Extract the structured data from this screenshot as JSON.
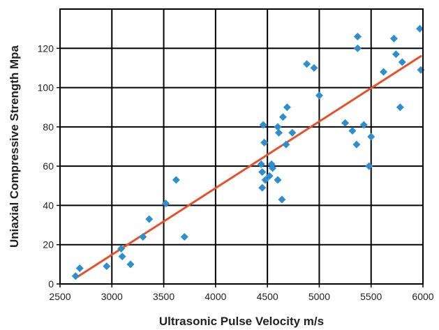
{
  "chart_data": {
    "type": "scatter",
    "title": "",
    "xlabel": "Ultrasonic Pulse Velocity m/s",
    "ylabel": "Uniaxial Compressive Strength Mpa",
    "xlim": [
      2500,
      6000
    ],
    "ylim": [
      0,
      140
    ],
    "x_ticks": [
      "2500",
      "3000",
      "3500",
      "4000",
      "4500",
      "5000",
      "5500",
      "6000"
    ],
    "y_ticks": [
      "0",
      "20",
      "40",
      "60",
      "80",
      "100",
      "120"
    ],
    "grid": true,
    "legend": "none",
    "marker_color": "#2e8fd0",
    "trendline_color": "#e8502a",
    "trendline": {
      "x": [
        2650,
        5980
      ],
      "y": [
        3,
        116
      ]
    },
    "points": [
      {
        "x": 2650,
        "y": 4
      },
      {
        "x": 2690,
        "y": 8
      },
      {
        "x": 2950,
        "y": 9
      },
      {
        "x": 3090,
        "y": 18
      },
      {
        "x": 3100,
        "y": 14
      },
      {
        "x": 3180,
        "y": 10
      },
      {
        "x": 3300,
        "y": 24
      },
      {
        "x": 3360,
        "y": 33
      },
      {
        "x": 3520,
        "y": 41
      },
      {
        "x": 3620,
        "y": 53
      },
      {
        "x": 3700,
        "y": 24
      },
      {
        "x": 4440,
        "y": 61
      },
      {
        "x": 4450,
        "y": 57
      },
      {
        "x": 4450,
        "y": 49
      },
      {
        "x": 4460,
        "y": 81
      },
      {
        "x": 4470,
        "y": 72
      },
      {
        "x": 4480,
        "y": 53
      },
      {
        "x": 4520,
        "y": 55
      },
      {
        "x": 4540,
        "y": 61
      },
      {
        "x": 4550,
        "y": 59
      },
      {
        "x": 4600,
        "y": 53
      },
      {
        "x": 4600,
        "y": 80
      },
      {
        "x": 4610,
        "y": 77
      },
      {
        "x": 4640,
        "y": 43
      },
      {
        "x": 4650,
        "y": 85
      },
      {
        "x": 4680,
        "y": 71
      },
      {
        "x": 4690,
        "y": 90
      },
      {
        "x": 4740,
        "y": 77
      },
      {
        "x": 4880,
        "y": 112
      },
      {
        "x": 4950,
        "y": 110
      },
      {
        "x": 5000,
        "y": 96
      },
      {
        "x": 5250,
        "y": 82
      },
      {
        "x": 5320,
        "y": 78
      },
      {
        "x": 5360,
        "y": 71
      },
      {
        "x": 5370,
        "y": 126
      },
      {
        "x": 5370,
        "y": 120
      },
      {
        "x": 5430,
        "y": 81
      },
      {
        "x": 5480,
        "y": 60
      },
      {
        "x": 5500,
        "y": 75
      },
      {
        "x": 5620,
        "y": 108
      },
      {
        "x": 5720,
        "y": 125
      },
      {
        "x": 5740,
        "y": 117
      },
      {
        "x": 5780,
        "y": 90
      },
      {
        "x": 5800,
        "y": 113
      },
      {
        "x": 5970,
        "y": 130
      },
      {
        "x": 5980,
        "y": 109
      }
    ]
  }
}
